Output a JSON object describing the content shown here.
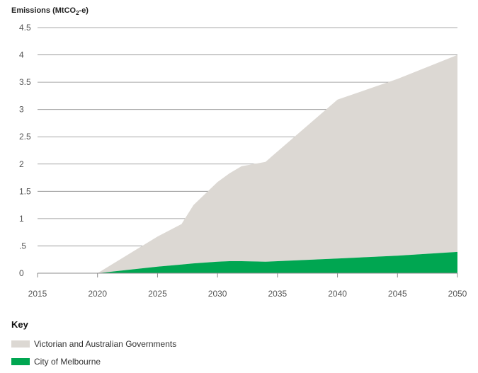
{
  "chart_data": {
    "type": "area",
    "stacked": true,
    "ylabel_main": "Emissions (MtCO",
    "ylabel_sub": "2",
    "ylabel_tail": "-e)",
    "xlabel": "",
    "xlim": [
      2015,
      2050
    ],
    "ylim": [
      0,
      4.5
    ],
    "x_ticks": [
      "2015",
      "2020",
      "2025",
      "2030",
      "2035",
      "2040",
      "2045",
      "2050"
    ],
    "y_ticks": [
      "0",
      ".5",
      "1",
      "1.5",
      "2",
      "2.5",
      "3",
      "3.5",
      "4",
      "4.5"
    ],
    "grid": "horizontal",
    "x": [
      2020,
      2025,
      2027,
      2028,
      2030,
      2031,
      2032,
      2034,
      2040,
      2045,
      2050
    ],
    "series": [
      {
        "name": "City of Melbourne",
        "color": "#00a651",
        "values": [
          0,
          0.12,
          0.16,
          0.18,
          0.21,
          0.22,
          0.22,
          0.21,
          0.27,
          0.32,
          0.39
        ]
      },
      {
        "name": "Victorian and Australian Governments",
        "color": "#dcd8d3",
        "values": [
          0,
          0.55,
          0.74,
          1.07,
          1.46,
          1.61,
          1.74,
          1.83,
          2.91,
          3.24,
          3.61
        ]
      }
    ]
  },
  "key": {
    "title": "Key",
    "items": [
      {
        "label": "Victorian and Australian Governments",
        "color": "#dcd8d3"
      },
      {
        "label": "City of Melbourne",
        "color": "#00a651"
      }
    ]
  }
}
